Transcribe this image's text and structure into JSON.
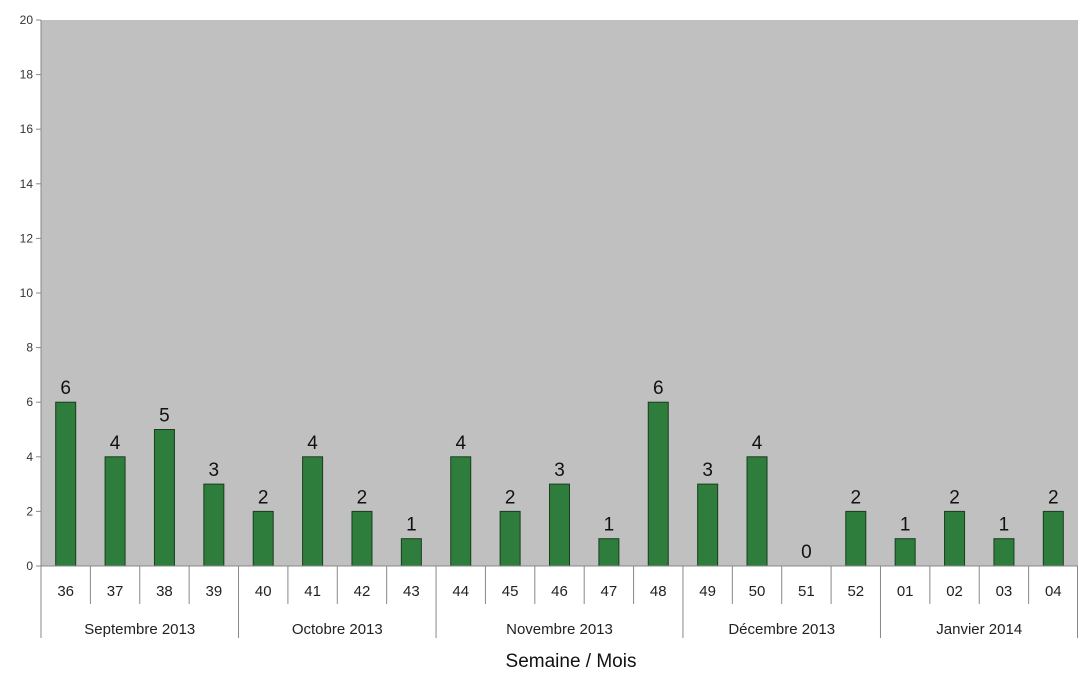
{
  "chart_data": {
    "type": "bar",
    "title": "",
    "xlabel": "Semaine /  Mois",
    "ylabel": "",
    "ylim": [
      0,
      20
    ],
    "yticks": [
      "0",
      "2",
      "4",
      "6",
      "8",
      "10",
      "12",
      "14",
      "16",
      "18",
      "20"
    ],
    "grid": false,
    "categories": [
      "36",
      "37",
      "38",
      "39",
      "40",
      "41",
      "42",
      "43",
      "44",
      "45",
      "46",
      "47",
      "48",
      "49",
      "50",
      "51",
      "52",
      "01",
      "02",
      "03",
      "04"
    ],
    "values": [
      6,
      4,
      5,
      3,
      2,
      4,
      2,
      1,
      4,
      2,
      3,
      1,
      6,
      3,
      4,
      0,
      2,
      1,
      2,
      1,
      2
    ],
    "groups": [
      {
        "label": "Septembre 2013",
        "count": 4
      },
      {
        "label": "Octobre 2013",
        "count": 4
      },
      {
        "label": "Novembre 2013",
        "count": 5
      },
      {
        "label": "Décembre 2013",
        "count": 4
      },
      {
        "label": "Janvier 2014",
        "count": 4
      }
    ],
    "colors": {
      "plot_background": "#c0c0c0",
      "bar_fill": "#2e7d3c",
      "bar_stroke": "#1a3d1e",
      "axis": "#888888"
    }
  }
}
